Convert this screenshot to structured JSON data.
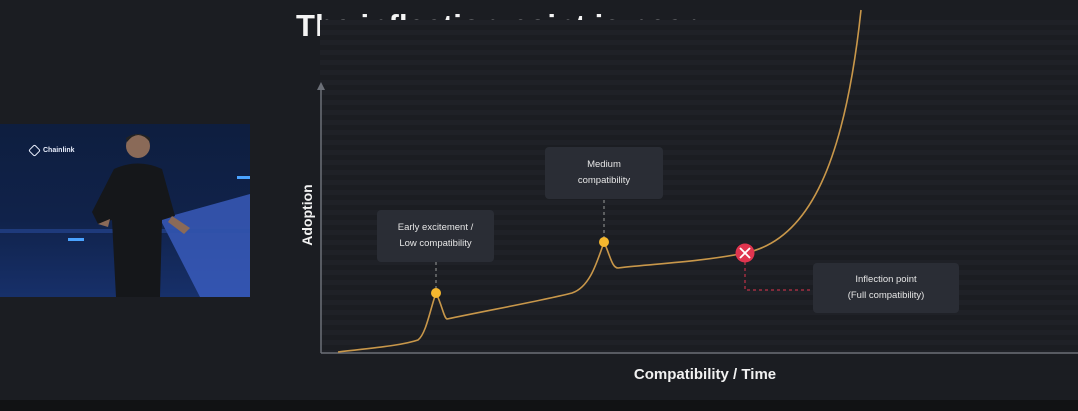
{
  "slide": {
    "title": "The inflection point is near",
    "presenter_logo_text": "Chainlink"
  },
  "chart_data": {
    "type": "line",
    "title": "The inflection point is near",
    "xlabel": "Compatibility / Time",
    "ylabel": "Adoption",
    "annotations": [
      {
        "label_line1": "Early excitement /",
        "label_line2": "Low compatibility"
      },
      {
        "label_line1": "Medium",
        "label_line2": "compatibility"
      },
      {
        "label_line1": "Inflection point",
        "label_line2": "(Full compatibility)"
      }
    ]
  },
  "colors": {
    "curve": "#c8974a",
    "marker": "#f5b72e",
    "inflection_marker": "#e0354f",
    "axis": "#6b6f77"
  }
}
